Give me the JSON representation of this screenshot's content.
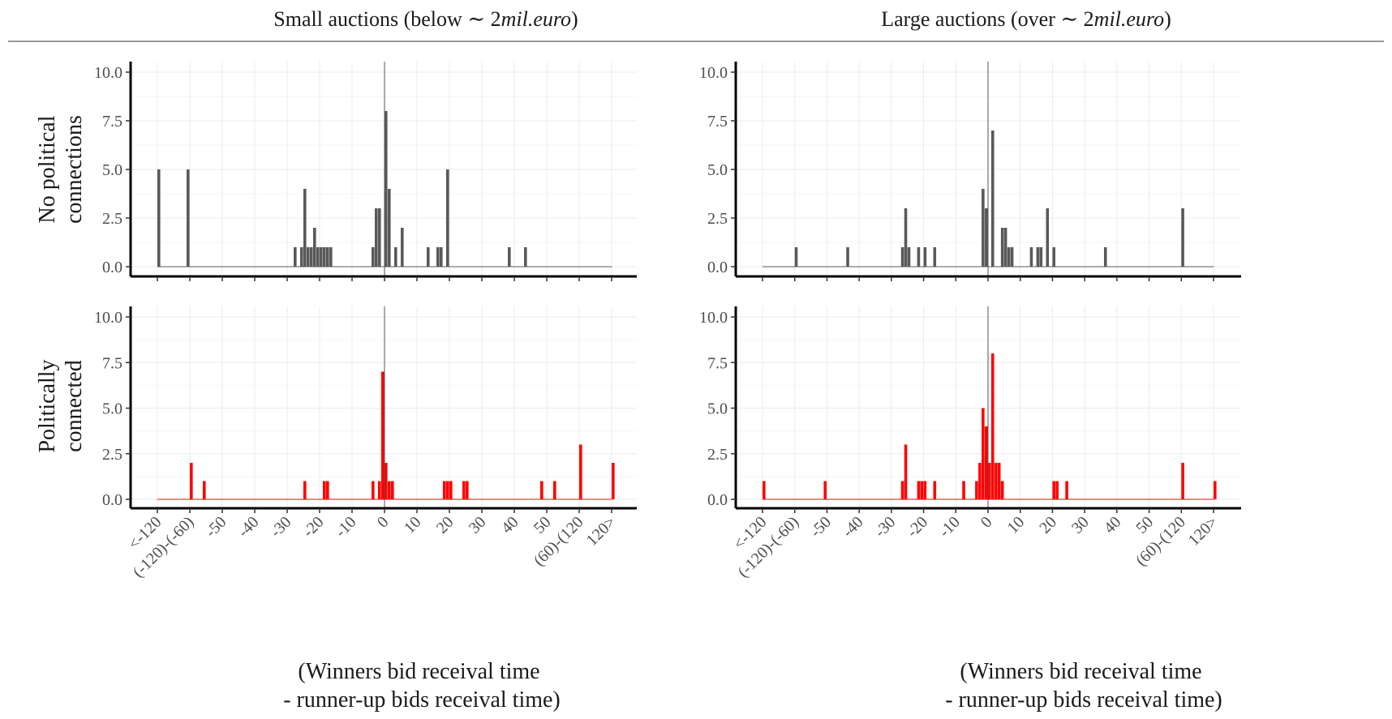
{
  "figure": {
    "column_titles": [
      {
        "prefix": "Small auctions (below ",
        "tilde": "∼ ",
        "amount": "2",
        "unit": "mil.euro",
        "suffix": ")"
      },
      {
        "prefix": "Large auctions (over ",
        "tilde": "∼ ",
        "amount": "2",
        "unit": "mil.euro",
        "suffix": ")"
      }
    ],
    "row_titles": [
      [
        "No political",
        "connections"
      ],
      [
        "Politically",
        "connected"
      ]
    ],
    "x_caption": [
      "(Winners bid receival time",
      "- runner-up bids receival time)"
    ],
    "y_ticks": [
      "0.0",
      "2.5",
      "5.0",
      "7.5",
      "10.0"
    ],
    "x_ticks": [
      {
        "pos": -140,
        "label": "<-120"
      },
      {
        "pos": -130,
        "label": "(-120)-(-60)"
      },
      {
        "pos": -120,
        "label": "-50"
      },
      {
        "pos": -110,
        "label": "-40"
      },
      {
        "pos": -100,
        "label": "-30"
      },
      {
        "pos": -90,
        "label": "-20"
      },
      {
        "pos": -80,
        "label": "-10"
      },
      {
        "pos": -70,
        "label": "0"
      },
      {
        "pos": -60,
        "label": "10"
      },
      {
        "pos": -50,
        "label": "20"
      },
      {
        "pos": -40,
        "label": "30"
      },
      {
        "pos": -30,
        "label": "40"
      },
      {
        "pos": -20,
        "label": "50"
      },
      {
        "pos": -10,
        "label": "(60)-(120"
      },
      {
        "pos": 0,
        "label": "120>"
      }
    ]
  },
  "chart_data": [
    {
      "type": "bar",
      "column": "Small auctions (below ∼ 2mil.euro)",
      "row": "No political connections",
      "color": "#595959",
      "xlim": [
        -140,
        0
      ],
      "ylim": [
        0,
        10
      ],
      "bars": [
        [
          -140,
          5
        ],
        [
          -131,
          5
        ],
        [
          -98,
          1
        ],
        [
          -96,
          1
        ],
        [
          -95,
          4
        ],
        [
          -94,
          1
        ],
        [
          -93,
          1
        ],
        [
          -92,
          2
        ],
        [
          -91,
          1
        ],
        [
          -90,
          1
        ],
        [
          -89,
          1
        ],
        [
          -88,
          1
        ],
        [
          -87,
          1
        ],
        [
          -74,
          1
        ],
        [
          -73,
          3
        ],
        [
          -72,
          3
        ],
        [
          -70,
          8
        ],
        [
          -69,
          4
        ],
        [
          -67,
          1
        ],
        [
          -65,
          2
        ],
        [
          -57,
          1
        ],
        [
          -54,
          1
        ],
        [
          -53,
          1
        ],
        [
          -51,
          5
        ],
        [
          -32,
          1
        ],
        [
          -27,
          1
        ]
      ]
    },
    {
      "type": "bar",
      "column": "Large auctions (over ∼ 2mil.euro)",
      "row": "No political connections",
      "color": "#595959",
      "xlim": [
        -140,
        0
      ],
      "ylim": [
        0,
        10
      ],
      "bars": [
        [
          -130,
          1
        ],
        [
          -114,
          1
        ],
        [
          -97,
          1
        ],
        [
          -96,
          3
        ],
        [
          -95,
          1
        ],
        [
          -92,
          1
        ],
        [
          -90,
          1
        ],
        [
          -87,
          1
        ],
        [
          -72,
          4
        ],
        [
          -71,
          3
        ],
        [
          -69,
          7
        ],
        [
          -66,
          2
        ],
        [
          -65,
          2
        ],
        [
          -64,
          1
        ],
        [
          -63,
          1
        ],
        [
          -57,
          1
        ],
        [
          -55,
          1
        ],
        [
          -54,
          1
        ],
        [
          -52,
          3
        ],
        [
          -50,
          1
        ],
        [
          -34,
          1
        ],
        [
          -10,
          3
        ]
      ]
    },
    {
      "type": "bar",
      "column": "Small auctions (below ∼ 2mil.euro)",
      "row": "Politically connected",
      "color": "#ff0000",
      "xlim": [
        -140,
        0
      ],
      "ylim": [
        0,
        10
      ],
      "bars": [
        [
          -130,
          2
        ],
        [
          -126,
          1
        ],
        [
          -95,
          1
        ],
        [
          -89,
          1
        ],
        [
          -88,
          1
        ],
        [
          -74,
          1
        ],
        [
          -72,
          1
        ],
        [
          -71,
          7
        ],
        [
          -70,
          2
        ],
        [
          -69,
          1
        ],
        [
          -68,
          1
        ],
        [
          -52,
          1
        ],
        [
          -51,
          1
        ],
        [
          -50,
          1
        ],
        [
          -46,
          1
        ],
        [
          -45,
          1
        ],
        [
          -22,
          1
        ],
        [
          -18,
          1
        ],
        [
          -10,
          3
        ],
        [
          0,
          2
        ]
      ]
    },
    {
      "type": "bar",
      "column": "Large auctions (over ∼ 2mil.euro)",
      "row": "Politically connected",
      "color": "#ff0000",
      "xlim": [
        -140,
        0
      ],
      "ylim": [
        0,
        10
      ],
      "bars": [
        [
          -140,
          1
        ],
        [
          -121,
          1
        ],
        [
          -97,
          1
        ],
        [
          -96,
          3
        ],
        [
          -92,
          1
        ],
        [
          -91,
          1
        ],
        [
          -90,
          1
        ],
        [
          -87,
          1
        ],
        [
          -78,
          1
        ],
        [
          -74,
          1
        ],
        [
          -73,
          2
        ],
        [
          -72,
          5
        ],
        [
          -71,
          4
        ],
        [
          -70,
          2
        ],
        [
          -69,
          8
        ],
        [
          -68,
          2
        ],
        [
          -67,
          2
        ],
        [
          -66,
          1
        ],
        [
          -50,
          1
        ],
        [
          -49,
          1
        ],
        [
          -46,
          1
        ],
        [
          -10,
          2
        ],
        [
          0,
          1
        ]
      ]
    }
  ]
}
